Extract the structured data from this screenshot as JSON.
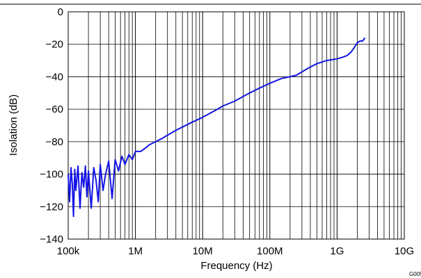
{
  "chart_data": {
    "type": "line",
    "title": "",
    "xlabel": "Frequency (Hz)",
    "ylabel": "Isolation (dB)",
    "xscale": "log",
    "xlim": [
      100000,
      10000000000
    ],
    "ylim": [
      -140,
      0
    ],
    "grid": true,
    "xticks": [
      {
        "value": 100000,
        "label": "100k"
      },
      {
        "value": 1000000,
        "label": "1M"
      },
      {
        "value": 10000000,
        "label": "10M"
      },
      {
        "value": 100000000,
        "label": "100M"
      },
      {
        "value": 1000000000,
        "label": "1G"
      },
      {
        "value": 10000000000,
        "label": "10G"
      }
    ],
    "yticks": [
      {
        "value": 0,
        "label": "0"
      },
      {
        "value": -20,
        "label": "−20"
      },
      {
        "value": -40,
        "label": "−40"
      },
      {
        "value": -60,
        "label": "−60"
      },
      {
        "value": -80,
        "label": "−80"
      },
      {
        "value": -100,
        "label": "−100"
      },
      {
        "value": -120,
        "label": "−120"
      },
      {
        "value": -140,
        "label": "−140"
      }
    ],
    "series": [
      {
        "color": "#1414e6",
        "x": [
          100000,
          105000,
          110000,
          115000,
          120000,
          125000,
          130000,
          140000,
          150000,
          160000,
          170000,
          180000,
          190000,
          200000,
          220000,
          240000,
          260000,
          280000,
          300000,
          330000,
          360000,
          400000,
          450000,
          500000,
          560000,
          630000,
          700000,
          800000,
          900000,
          1000000,
          1200000,
          1400000,
          1600000,
          2000000,
          2500000,
          3000000,
          4000000,
          5000000,
          7000000,
          10000000,
          15000000,
          20000000,
          30000000,
          50000000,
          70000000,
          100000000,
          150000000,
          200000000,
          250000000,
          300000000,
          400000000,
          500000000,
          700000000,
          1000000000,
          1200000000,
          1400000000,
          1600000000,
          1800000000,
          2000000000,
          2200000000,
          2400000000,
          2600000000
        ],
        "y": [
          -100,
          -117,
          -96,
          -106,
          -126,
          -97,
          -110,
          -95,
          -121,
          -99,
          -108,
          -95,
          -114,
          -98,
          -121,
          -96,
          -104,
          -117,
          -94,
          -110,
          -100,
          -92,
          -115,
          -91,
          -98,
          -89,
          -94,
          -88,
          -91,
          -86,
          -86,
          -84,
          -82,
          -80,
          -78,
          -76,
          -73,
          -71,
          -68,
          -65,
          -61,
          -58,
          -55,
          -50,
          -47,
          -44,
          -41,
          -40,
          -39,
          -37,
          -34,
          -32,
          -30,
          -29,
          -28,
          -27,
          -25,
          -22,
          -19,
          -18,
          -18,
          -16
        ]
      }
    ]
  },
  "figure_code": "G005"
}
